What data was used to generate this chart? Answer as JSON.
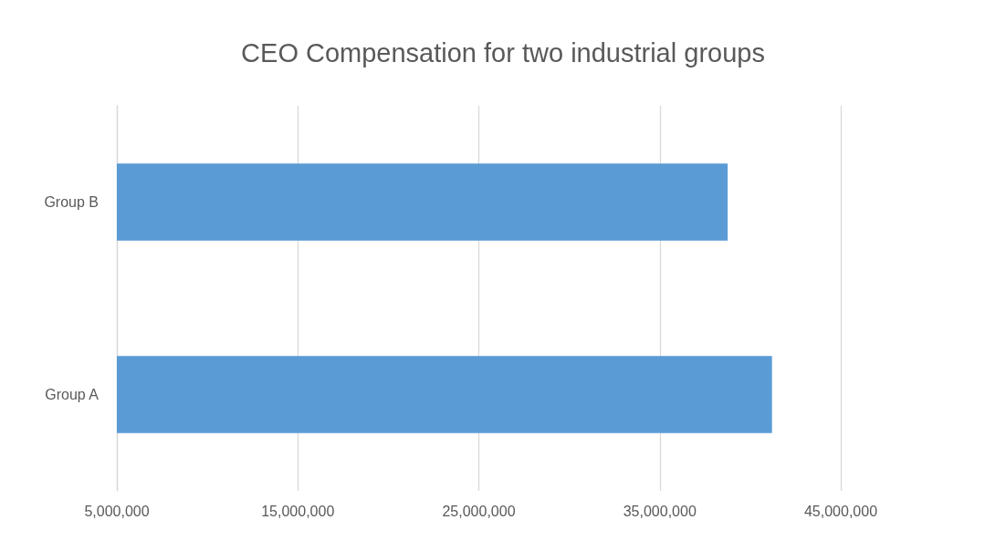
{
  "chart_data": {
    "type": "bar",
    "orientation": "horizontal",
    "title": "CEO Compensation for two industrial groups",
    "categories": [
      "Group B",
      "Group A"
    ],
    "values": [
      38750000,
      41200000
    ],
    "color": "#5b9bd5",
    "xlim": [
      5000000,
      45000000
    ],
    "xticks": [
      {
        "value": 5000000,
        "label": "5,000,000"
      },
      {
        "value": 15000000,
        "label": "15,000,000"
      },
      {
        "value": 25000000,
        "label": "25,000,000"
      },
      {
        "value": 35000000,
        "label": "35,000,000"
      },
      {
        "value": 45000000,
        "label": "45,000,000"
      }
    ],
    "grid": "x"
  }
}
